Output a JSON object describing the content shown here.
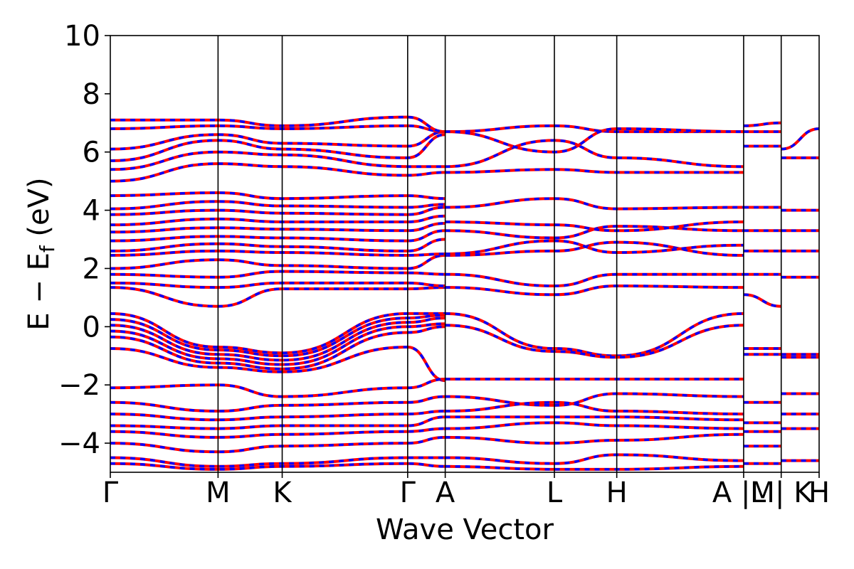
{
  "chart_data": {
    "type": "line",
    "xlabel": "Wave Vector",
    "ylabel": "E − E",
    "ylabel_subscript": "f",
    "ylabel_unit": "(eV)",
    "ylim": [
      -5,
      10
    ],
    "yticks": [
      -4,
      -2,
      0,
      2,
      4,
      6,
      8,
      10
    ],
    "ytick_labels": [
      "−4",
      "−2",
      "0",
      "2",
      "4",
      "6",
      "8",
      "10"
    ],
    "grid": false,
    "legend": "none",
    "series_colors": [
      "#ff0000",
      "#0000ff"
    ],
    "series_style": "red solid bands overlaid with blue dashed bands",
    "kpath": [
      {
        "label": "Γ",
        "x": 0.0
      },
      {
        "label": "M",
        "x": 0.152
      },
      {
        "label": "K",
        "x": 0.2425
      },
      {
        "label": "Γ",
        "x": 0.4195
      },
      {
        "label": "A",
        "x": 0.4725
      },
      {
        "label": "L",
        "x": 0.6265
      },
      {
        "label": "H",
        "x": 0.7145
      },
      {
        "label": "A |M",
        "x": 0.8935
      },
      {
        "label": "L | K",
        "x": 0.9465
      },
      {
        "label": "H",
        "x": 1.0
      }
    ],
    "xlim": [
      0,
      1
    ],
    "bands": [
      {
        "x": [
          0,
          0.152,
          0.2425,
          0.4195,
          0.4725
        ],
        "y": [
          0.45,
          -0.7,
          -0.9,
          0.45,
          0.45
        ]
      },
      {
        "x": [
          0,
          0.152,
          0.2425,
          0.4195,
          0.4725
        ],
        "y": [
          0.25,
          -0.8,
          -1.0,
          0.3,
          0.4
        ]
      },
      {
        "x": [
          0,
          0.152,
          0.2425,
          0.4195,
          0.4725
        ],
        "y": [
          0.05,
          -0.95,
          -1.15,
          0.15,
          0.3
        ]
      },
      {
        "x": [
          0,
          0.152,
          0.2425,
          0.4195,
          0.4725
        ],
        "y": [
          -0.15,
          -1.1,
          -1.3,
          0.0,
          0.1
        ]
      },
      {
        "x": [
          0,
          0.152,
          0.2425,
          0.4195,
          0.4725
        ],
        "y": [
          -0.35,
          -1.25,
          -1.45,
          -0.2,
          0.0
        ]
      },
      {
        "x": [
          0,
          0.152,
          0.2425,
          0.4195,
          0.4725
        ],
        "y": [
          -0.75,
          -1.4,
          -1.55,
          -0.7,
          -1.85
        ]
      },
      {
        "x": [
          0.4725,
          0.6265,
          0.7145,
          0.8935
        ],
        "y": [
          0.45,
          -0.75,
          -1.0,
          0.45
        ]
      },
      {
        "x": [
          0.4725,
          0.6265,
          0.7145,
          0.8935
        ],
        "y": [
          0.05,
          -0.85,
          -1.05,
          0.05
        ]
      },
      {
        "x": [
          0.8935,
          0.9465
        ],
        "y": [
          -0.75,
          -0.75
        ]
      },
      {
        "x": [
          0.8935,
          0.9465
        ],
        "y": [
          -0.95,
          -0.95
        ]
      },
      {
        "x": [
          0.9465,
          1.0
        ],
        "y": [
          -0.95,
          -0.95
        ]
      },
      {
        "x": [
          0.9465,
          1.0
        ],
        "y": [
          -1.05,
          -1.05
        ]
      },
      {
        "x": [
          0,
          0.152,
          0.2425,
          0.4195,
          0.4725
        ],
        "y": [
          1.35,
          0.7,
          1.3,
          1.3,
          1.35
        ]
      },
      {
        "x": [
          0,
          0.152,
          0.2425,
          0.4195,
          0.4725
        ],
        "y": [
          1.5,
          1.35,
          1.5,
          1.5,
          1.4
        ]
      },
      {
        "x": [
          0,
          0.152,
          0.2425,
          0.4195,
          0.4725
        ],
        "y": [
          1.8,
          1.7,
          1.9,
          1.85,
          1.8
        ]
      },
      {
        "x": [
          0,
          0.152,
          0.2425,
          0.4195,
          0.4725
        ],
        "y": [
          2.0,
          2.3,
          2.1,
          2.0,
          2.45
        ]
      },
      {
        "x": [
          0,
          0.152,
          0.2425,
          0.4195,
          0.4725
        ],
        "y": [
          2.45,
          2.6,
          2.55,
          2.45,
          2.5
        ]
      },
      {
        "x": [
          0,
          0.152,
          0.2425,
          0.4195,
          0.4725
        ],
        "y": [
          2.6,
          2.85,
          2.75,
          2.6,
          3.0
        ]
      },
      {
        "x": [
          0,
          0.152,
          0.2425,
          0.4195,
          0.4725
        ],
        "y": [
          2.95,
          3.1,
          3.05,
          2.95,
          3.3
        ]
      },
      {
        "x": [
          0,
          0.152,
          0.2425,
          0.4195,
          0.4725
        ],
        "y": [
          3.25,
          3.4,
          3.35,
          3.3,
          3.55
        ]
      },
      {
        "x": [
          0,
          0.152,
          0.2425,
          0.4195,
          0.4725
        ],
        "y": [
          3.5,
          3.7,
          3.6,
          3.6,
          3.8
        ]
      },
      {
        "x": [
          0,
          0.152,
          0.2425,
          0.4195,
          0.4725
        ],
        "y": [
          3.85,
          4.0,
          3.9,
          3.85,
          4.1
        ]
      },
      {
        "x": [
          0,
          0.152,
          0.2425,
          0.4195,
          0.4725
        ],
        "y": [
          4.05,
          4.3,
          4.15,
          4.1,
          4.2
        ]
      },
      {
        "x": [
          0,
          0.152,
          0.2425,
          0.4195,
          0.4725
        ],
        "y": [
          4.5,
          4.6,
          4.4,
          4.5,
          4.4
        ]
      },
      {
        "x": [
          0.4725,
          0.6265,
          0.7145,
          0.8935
        ],
        "y": [
          1.35,
          1.1,
          1.4,
          1.35
        ]
      },
      {
        "x": [
          0.4725,
          0.6265,
          0.7145,
          0.8935
        ],
        "y": [
          1.8,
          1.4,
          1.8,
          1.8
        ]
      },
      {
        "x": [
          0.4725,
          0.6265,
          0.7145,
          0.8935
        ],
        "y": [
          2.45,
          2.6,
          2.9,
          2.45
        ]
      },
      {
        "x": [
          0.4725,
          0.6265,
          0.7145,
          0.8935
        ],
        "y": [
          2.5,
          2.95,
          2.55,
          2.8
        ]
      },
      {
        "x": [
          0.4725,
          0.6265,
          0.7145,
          0.8935
        ],
        "y": [
          3.3,
          3.05,
          3.45,
          3.3
        ]
      },
      {
        "x": [
          0.4725,
          0.6265,
          0.7145,
          0.8935
        ],
        "y": [
          3.6,
          3.5,
          3.3,
          3.6
        ]
      },
      {
        "x": [
          0.4725,
          0.6265,
          0.7145,
          0.8935
        ],
        "y": [
          4.1,
          4.4,
          4.05,
          4.1
        ]
      },
      {
        "x": [
          0.8935,
          0.9465
        ],
        "y": [
          1.1,
          0.7
        ]
      },
      {
        "x": [
          0.8935,
          0.9465
        ],
        "y": [
          1.8,
          1.8
        ]
      },
      {
        "x": [
          0.8935,
          0.9465
        ],
        "y": [
          2.6,
          2.6
        ]
      },
      {
        "x": [
          0.8935,
          0.9465
        ],
        "y": [
          3.3,
          3.3
        ]
      },
      {
        "x": [
          0.8935,
          0.9465
        ],
        "y": [
          4.1,
          4.1
        ]
      },
      {
        "x": [
          0.9465,
          1.0
        ],
        "y": [
          1.7,
          1.7
        ]
      },
      {
        "x": [
          0.9465,
          1.0
        ],
        "y": [
          2.6,
          2.6
        ]
      },
      {
        "x": [
          0.9465,
          1.0
        ],
        "y": [
          3.3,
          3.3
        ]
      },
      {
        "x": [
          0.9465,
          1.0
        ],
        "y": [
          4.0,
          4.0
        ]
      },
      {
        "x": [
          0,
          0.152,
          0.2425,
          0.4195,
          0.4725
        ],
        "y": [
          5.0,
          5.6,
          5.5,
          5.2,
          5.3
        ]
      },
      {
        "x": [
          0,
          0.152,
          0.2425,
          0.4195,
          0.4725
        ],
        "y": [
          5.4,
          6.0,
          5.9,
          5.5,
          5.5
        ]
      },
      {
        "x": [
          0,
          0.152,
          0.2425,
          0.4195,
          0.4725
        ],
        "y": [
          5.7,
          6.4,
          6.1,
          5.8,
          6.6
        ]
      },
      {
        "x": [
          0,
          0.152,
          0.2425,
          0.4195,
          0.4725
        ],
        "y": [
          6.1,
          6.6,
          6.3,
          6.2,
          6.7
        ]
      },
      {
        "x": [
          0,
          0.152,
          0.2425,
          0.4195,
          0.4725
        ],
        "y": [
          6.8,
          6.9,
          6.8,
          6.9,
          6.7
        ]
      },
      {
        "x": [
          0,
          0.152,
          0.2425,
          0.4195,
          0.4725
        ],
        "y": [
          7.1,
          7.1,
          6.9,
          7.2,
          6.7
        ]
      },
      {
        "x": [
          0.4725,
          0.6265,
          0.7145,
          0.8935
        ],
        "y": [
          5.3,
          5.4,
          5.3,
          5.3
        ]
      },
      {
        "x": [
          0.4725,
          0.6265,
          0.7145,
          0.8935
        ],
        "y": [
          5.5,
          6.4,
          5.8,
          5.5
        ]
      },
      {
        "x": [
          0.4725,
          0.6265,
          0.7145,
          0.8935
        ],
        "y": [
          6.7,
          6.9,
          6.7,
          6.7
        ]
      },
      {
        "x": [
          0.4725,
          0.6265,
          0.7145,
          0.8935
        ],
        "y": [
          6.7,
          6.0,
          6.8,
          6.7
        ]
      },
      {
        "x": [
          0.8935,
          0.9465
        ],
        "y": [
          6.2,
          6.2
        ]
      },
      {
        "x": [
          0.8935,
          0.9465
        ],
        "y": [
          6.7,
          6.7
        ]
      },
      {
        "x": [
          0.8935,
          0.9465
        ],
        "y": [
          6.9,
          7.0
        ]
      },
      {
        "x": [
          0.9465,
          1.0
        ],
        "y": [
          5.8,
          5.8
        ]
      },
      {
        "x": [
          0.9465,
          1.0
        ],
        "y": [
          6.1,
          6.8
        ]
      },
      {
        "x": [
          0,
          0.152,
          0.2425,
          0.4195,
          0.4725
        ],
        "y": [
          -2.1,
          -2.0,
          -2.4,
          -2.1,
          -1.8
        ]
      },
      {
        "x": [
          0,
          0.152,
          0.2425,
          0.4195,
          0.4725
        ],
        "y": [
          -2.6,
          -2.9,
          -2.7,
          -2.6,
          -2.4
        ]
      },
      {
        "x": [
          0,
          0.152,
          0.2425,
          0.4195,
          0.4725
        ],
        "y": [
          -3.0,
          -3.2,
          -3.1,
          -3.0,
          -2.9
        ]
      },
      {
        "x": [
          0,
          0.152,
          0.2425,
          0.4195,
          0.4725
        ],
        "y": [
          -3.4,
          -3.5,
          -3.4,
          -3.4,
          -3.1
        ]
      },
      {
        "x": [
          0,
          0.152,
          0.2425,
          0.4195,
          0.4725
        ],
        "y": [
          -3.6,
          -3.8,
          -3.7,
          -3.6,
          -3.5
        ]
      },
      {
        "x": [
          0,
          0.152,
          0.2425,
          0.4195,
          0.4725
        ],
        "y": [
          -4.0,
          -4.3,
          -4.1,
          -4.0,
          -3.8
        ]
      },
      {
        "x": [
          0,
          0.152,
          0.2425,
          0.4195,
          0.4725
        ],
        "y": [
          -4.5,
          -4.8,
          -4.7,
          -4.5,
          -4.5
        ]
      },
      {
        "x": [
          0,
          0.152,
          0.2425,
          0.4195,
          0.4725
        ],
        "y": [
          -4.7,
          -4.9,
          -4.8,
          -4.7,
          -4.8
        ]
      },
      {
        "x": [
          0.4725,
          0.6265,
          0.7145,
          0.8935
        ],
        "y": [
          -1.8,
          -1.8,
          -1.8,
          -1.8
        ]
      },
      {
        "x": [
          0.4725,
          0.6265,
          0.7145,
          0.8935
        ],
        "y": [
          -2.4,
          -2.7,
          -2.3,
          -2.4
        ]
      },
      {
        "x": [
          0.4725,
          0.6265,
          0.7145,
          0.8935
        ],
        "y": [
          -2.9,
          -2.6,
          -2.9,
          -3.0
        ]
      },
      {
        "x": [
          0.4725,
          0.6265,
          0.7145,
          0.8935
        ],
        "y": [
          -3.1,
          -3.1,
          -3.1,
          -3.2
        ]
      },
      {
        "x": [
          0.4725,
          0.6265,
          0.7145,
          0.8935
        ],
        "y": [
          -3.5,
          -3.3,
          -3.4,
          -3.5
        ]
      },
      {
        "x": [
          0.4725,
          0.6265,
          0.7145,
          0.8935
        ],
        "y": [
          -3.8,
          -4.0,
          -3.9,
          -3.7
        ]
      },
      {
        "x": [
          0.4725,
          0.6265,
          0.7145,
          0.8935
        ],
        "y": [
          -4.5,
          -4.7,
          -4.4,
          -4.6
        ]
      },
      {
        "x": [
          0.4725,
          0.6265,
          0.7145,
          0.8935
        ],
        "y": [
          -4.8,
          -4.9,
          -4.9,
          -4.8
        ]
      },
      {
        "x": [
          0.8935,
          0.9465
        ],
        "y": [
          -2.6,
          -2.6
        ]
      },
      {
        "x": [
          0.8935,
          0.9465
        ],
        "y": [
          -3.3,
          -3.3
        ]
      },
      {
        "x": [
          0.8935,
          0.9465
        ],
        "y": [
          -3.6,
          -3.6
        ]
      },
      {
        "x": [
          0.8935,
          0.9465
        ],
        "y": [
          -4.1,
          -4.1
        ]
      },
      {
        "x": [
          0.8935,
          0.9465
        ],
        "y": [
          -4.7,
          -4.7
        ]
      },
      {
        "x": [
          0.9465,
          1.0
        ],
        "y": [
          -2.3,
          -2.3
        ]
      },
      {
        "x": [
          0.9465,
          1.0
        ],
        "y": [
          -3.0,
          -3.0
        ]
      },
      {
        "x": [
          0.9465,
          1.0
        ],
        "y": [
          -3.5,
          -3.5
        ]
      },
      {
        "x": [
          0.9465,
          1.0
        ],
        "y": [
          -4.6,
          -4.6
        ]
      }
    ]
  }
}
